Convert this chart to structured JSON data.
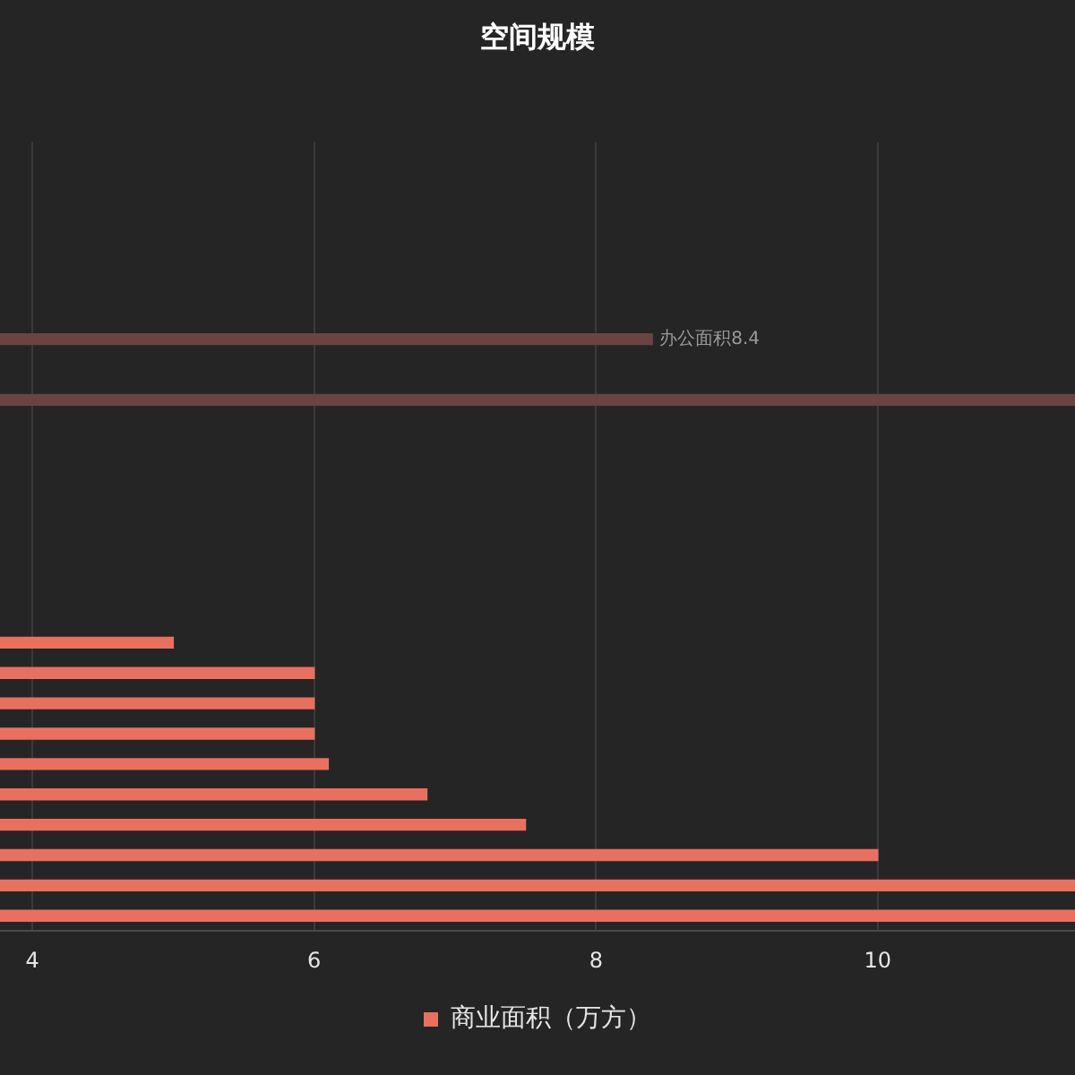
{
  "chart_data": {
    "type": "bar",
    "orientation": "horizontal",
    "title": "空间规模",
    "categories": [
      null,
      null,
      null,
      null,
      null,
      null,
      null,
      null,
      null,
      null,
      null,
      null,
      null,
      null,
      null,
      null,
      null,
      null,
      null,
      null,
      null,
      null,
      null,
      null,
      null,
      null
    ],
    "series": [
      {
        "color": "#6b4341",
        "values": [
          null,
          null,
          null,
          null,
          null,
          null,
          8.4,
          null,
          11.4,
          null,
          null,
          null,
          null,
          null,
          null,
          null,
          null,
          null,
          null,
          null,
          null,
          null,
          null,
          null,
          null,
          null
        ],
        "value_labels": [
          null,
          null,
          null,
          null,
          null,
          null,
          "办公面积8.4",
          null,
          null,
          null,
          null,
          null,
          null,
          null,
          null,
          null,
          null,
          null,
          null,
          null,
          null,
          null,
          null,
          null,
          null,
          null
        ]
      },
      {
        "name": "商业面积（万方）",
        "color": "#e9705f",
        "values": [
          null,
          null,
          null,
          null,
          null,
          null,
          null,
          null,
          null,
          null,
          null,
          null,
          null,
          null,
          null,
          null,
          5.0,
          6.0,
          6.0,
          6.0,
          6.1,
          6.8,
          7.5,
          10.0,
          11.4,
          11.4
        ]
      }
    ],
    "xlim": [
      3.77,
      11.4
    ],
    "xticks": [
      4,
      6,
      8,
      10
    ],
    "grid": "x",
    "legend": "bottom",
    "tick_labels": "x"
  }
}
